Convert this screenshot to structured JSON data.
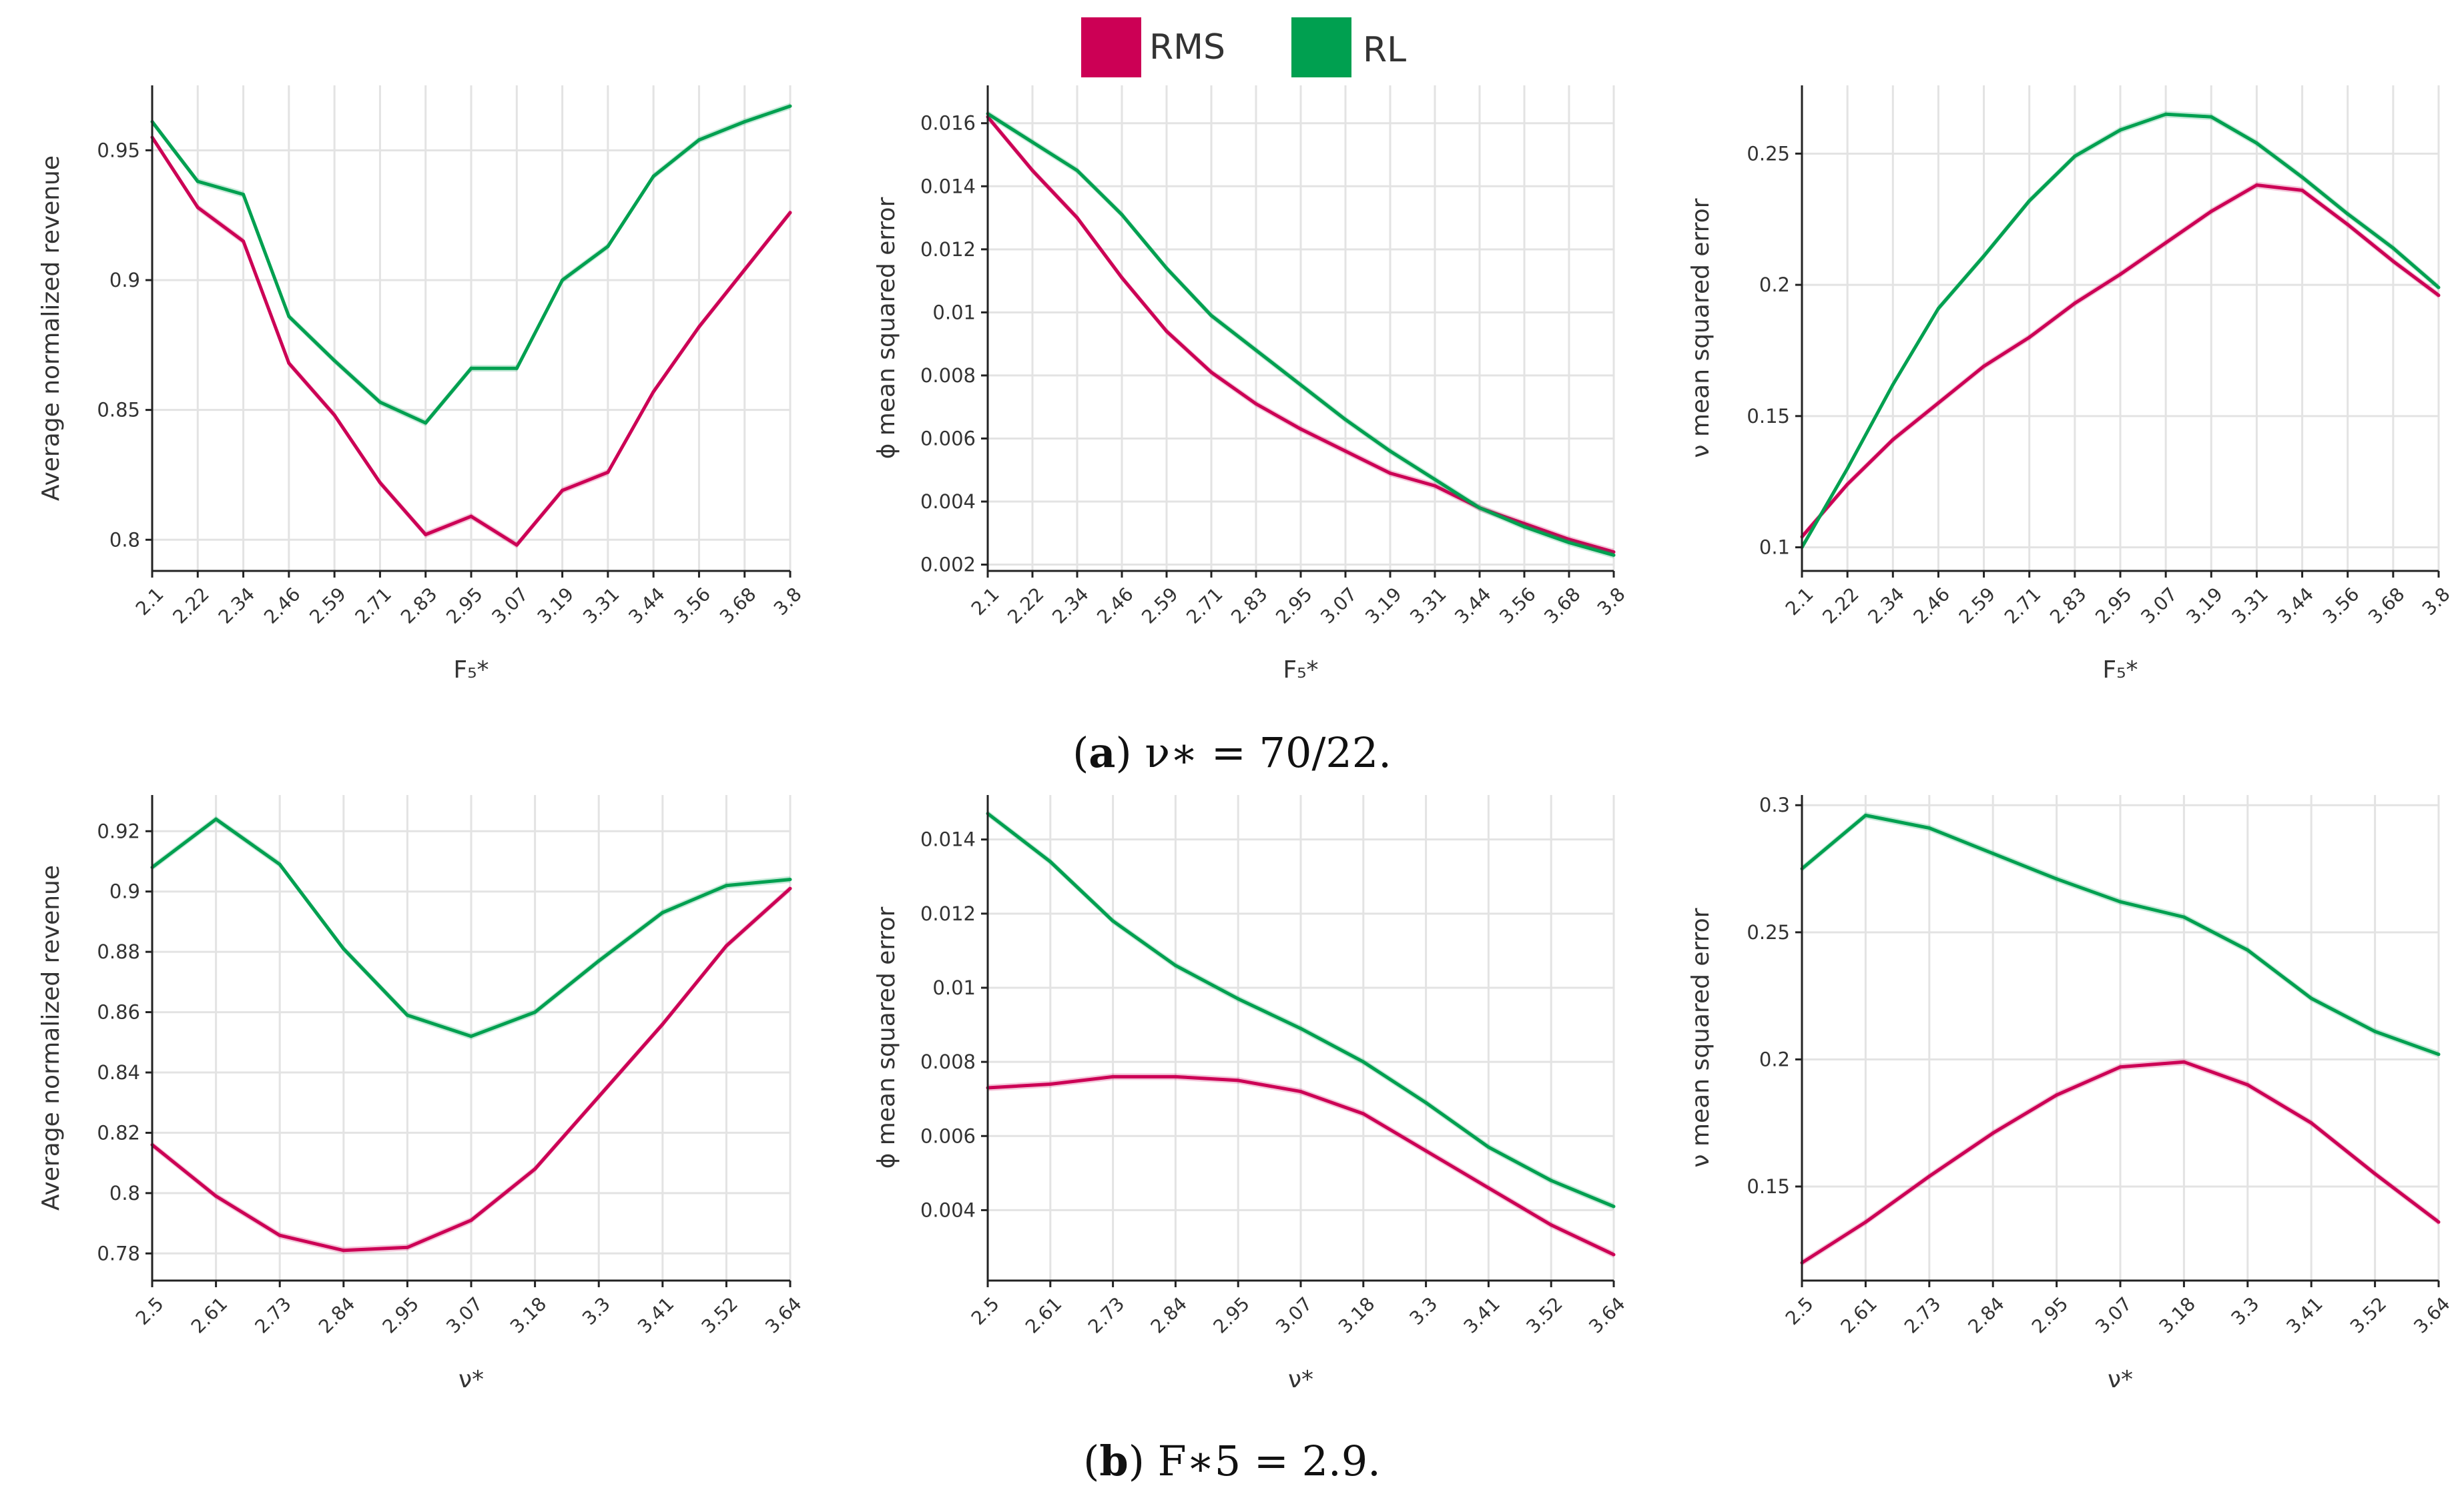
{
  "legend": {
    "items": [
      {
        "label": "RMS",
        "color": "#cc0055"
      },
      {
        "label": "RL",
        "color": "#00a050"
      }
    ]
  },
  "captions": {
    "a": {
      "tag": "a",
      "text": "ν∗ = 70/22."
    },
    "b": {
      "tag": "b",
      "text": "F∗5 = 2.9."
    }
  },
  "chart_data": [
    {
      "id": "a1",
      "type": "line",
      "xlabel": "F₅*",
      "ylabel": "Average normalized revenue",
      "x": [
        2.1,
        2.22,
        2.34,
        2.46,
        2.59,
        2.71,
        2.83,
        2.95,
        3.07,
        3.19,
        3.31,
        3.44,
        3.56,
        3.68,
        3.8
      ],
      "xticklabels": [
        "2.1",
        "2.22",
        "2.34",
        "2.46",
        "2.59",
        "2.71",
        "2.83",
        "2.95",
        "3.07",
        "3.19",
        "3.31",
        "3.44",
        "3.56",
        "3.68",
        "3.8"
      ],
      "ylim": [
        0.788,
        0.975
      ],
      "yticks": [
        0.8,
        0.85,
        0.9,
        0.95
      ],
      "yticklabels": [
        "0.8",
        "0.85",
        "0.9",
        "0.95"
      ],
      "grid": true,
      "series": [
        {
          "name": "RMS",
          "values": [
            0.955,
            0.928,
            0.915,
            0.868,
            0.848,
            0.822,
            0.802,
            0.809,
            0.798,
            0.819,
            0.826,
            0.857,
            0.882,
            0.904,
            0.926
          ]
        },
        {
          "name": "RL",
          "values": [
            0.961,
            0.938,
            0.933,
            0.886,
            0.869,
            0.853,
            0.845,
            0.866,
            0.866,
            0.9,
            0.913,
            0.94,
            0.954,
            0.961,
            0.967
          ]
        }
      ]
    },
    {
      "id": "a2",
      "type": "line",
      "xlabel": "F₅*",
      "ylabel": "ϕ mean squared error",
      "x": [
        2.1,
        2.22,
        2.34,
        2.46,
        2.59,
        2.71,
        2.83,
        2.95,
        3.07,
        3.19,
        3.31,
        3.44,
        3.56,
        3.68,
        3.8
      ],
      "xticklabels": [
        "2.1",
        "2.22",
        "2.34",
        "2.46",
        "2.59",
        "2.71",
        "2.83",
        "2.95",
        "3.07",
        "3.19",
        "3.31",
        "3.44",
        "3.56",
        "3.68",
        "3.8"
      ],
      "ylim": [
        0.0018,
        0.0172
      ],
      "yticks": [
        0.002,
        0.004,
        0.006,
        0.008,
        0.01,
        0.012,
        0.014,
        0.016
      ],
      "yticklabels": [
        "0.002",
        "0.004",
        "0.006",
        "0.008",
        "0.01",
        "0.012",
        "0.014",
        "0.016"
      ],
      "grid": true,
      "series": [
        {
          "name": "RMS",
          "values": [
            0.0162,
            0.0145,
            0.013,
            0.0111,
            0.0094,
            0.0081,
            0.0071,
            0.0063,
            0.0056,
            0.0049,
            0.0045,
            0.0038,
            0.0033,
            0.0028,
            0.0024
          ]
        },
        {
          "name": "RL",
          "values": [
            0.0163,
            0.0154,
            0.0145,
            0.0131,
            0.0114,
            0.0099,
            0.0088,
            0.0077,
            0.0066,
            0.0056,
            0.0047,
            0.0038,
            0.0032,
            0.0027,
            0.0023
          ]
        }
      ]
    },
    {
      "id": "a3",
      "type": "line",
      "xlabel": "F₅*",
      "ylabel": "ν mean squared error",
      "x": [
        2.1,
        2.22,
        2.34,
        2.46,
        2.59,
        2.71,
        2.83,
        2.95,
        3.07,
        3.19,
        3.31,
        3.44,
        3.56,
        3.68,
        3.8
      ],
      "xticklabels": [
        "2.1",
        "2.22",
        "2.34",
        "2.46",
        "2.59",
        "2.71",
        "2.83",
        "2.95",
        "3.07",
        "3.19",
        "3.31",
        "3.44",
        "3.56",
        "3.68",
        "3.8"
      ],
      "ylim": [
        0.091,
        0.276
      ],
      "yticks": [
        0.1,
        0.15,
        0.2,
        0.25
      ],
      "yticklabels": [
        "0.1",
        "0.15",
        "0.2",
        "0.25"
      ],
      "grid": true,
      "series": [
        {
          "name": "RMS",
          "values": [
            0.104,
            0.124,
            0.141,
            0.155,
            0.169,
            0.18,
            0.193,
            0.204,
            0.216,
            0.228,
            0.238,
            0.236,
            0.223,
            0.209,
            0.196
          ]
        },
        {
          "name": "RL",
          "values": [
            0.1,
            0.13,
            0.162,
            0.191,
            0.211,
            0.232,
            0.249,
            0.259,
            0.265,
            0.264,
            0.254,
            0.241,
            0.227,
            0.214,
            0.199
          ]
        }
      ]
    },
    {
      "id": "b1",
      "type": "line",
      "xlabel": "ν*",
      "ylabel": "Average normalized revenue",
      "x": [
        2.5,
        2.61,
        2.73,
        2.84,
        2.95,
        3.07,
        3.18,
        3.3,
        3.41,
        3.52,
        3.64
      ],
      "xticklabels": [
        "2.5",
        "2.61",
        "2.73",
        "2.84",
        "2.95",
        "3.07",
        "3.18",
        "3.3",
        "3.41",
        "3.52",
        "3.64"
      ],
      "ylim": [
        0.771,
        0.932
      ],
      "yticks": [
        0.78,
        0.8,
        0.82,
        0.84,
        0.86,
        0.88,
        0.9,
        0.92
      ],
      "yticklabels": [
        "0.78",
        "0.8",
        "0.82",
        "0.84",
        "0.86",
        "0.88",
        "0.9",
        "0.92"
      ],
      "grid": true,
      "series": [
        {
          "name": "RMS",
          "values": [
            0.816,
            0.799,
            0.786,
            0.781,
            0.782,
            0.791,
            0.808,
            0.832,
            0.856,
            0.882,
            0.901
          ]
        },
        {
          "name": "RL",
          "values": [
            0.908,
            0.924,
            0.909,
            0.881,
            0.859,
            0.852,
            0.86,
            0.877,
            0.893,
            0.902,
            0.904
          ]
        }
      ]
    },
    {
      "id": "b2",
      "type": "line",
      "xlabel": "ν*",
      "ylabel": "ϕ mean squared error",
      "x": [
        2.5,
        2.61,
        2.73,
        2.84,
        2.95,
        3.07,
        3.18,
        3.3,
        3.41,
        3.52,
        3.64
      ],
      "xticklabels": [
        "2.5",
        "2.61",
        "2.73",
        "2.84",
        "2.95",
        "3.07",
        "3.18",
        "3.3",
        "3.41",
        "3.52",
        "3.64"
      ],
      "ylim": [
        0.0021,
        0.0152
      ],
      "yticks": [
        0.004,
        0.006,
        0.008,
        0.01,
        0.012,
        0.014
      ],
      "yticklabels": [
        "0.004",
        "0.006",
        "0.008",
        "0.01",
        "0.012",
        "0.014"
      ],
      "grid": true,
      "series": [
        {
          "name": "RMS",
          "values": [
            0.0073,
            0.0074,
            0.0076,
            0.0076,
            0.0075,
            0.0072,
            0.0066,
            0.0056,
            0.0046,
            0.0036,
            0.0028
          ]
        },
        {
          "name": "RL",
          "values": [
            0.0147,
            0.0134,
            0.0118,
            0.0106,
            0.0097,
            0.0089,
            0.008,
            0.0069,
            0.0057,
            0.0048,
            0.0041
          ]
        }
      ]
    },
    {
      "id": "b3",
      "type": "line",
      "xlabel": "ν*",
      "ylabel": "ν mean squared error",
      "x": [
        2.5,
        2.61,
        2.73,
        2.84,
        2.95,
        3.07,
        3.18,
        3.3,
        3.41,
        3.52,
        3.64
      ],
      "xticklabels": [
        "2.5",
        "2.61",
        "2.73",
        "2.84",
        "2.95",
        "3.07",
        "3.18",
        "3.3",
        "3.41",
        "3.52",
        "3.64"
      ],
      "ylim": [
        0.113,
        0.304
      ],
      "yticks": [
        0.15,
        0.2,
        0.25,
        0.3
      ],
      "yticklabels": [
        "0.15",
        "0.2",
        "0.25",
        "0.3"
      ],
      "grid": true,
      "series": [
        {
          "name": "RMS",
          "values": [
            0.12,
            0.136,
            0.154,
            0.171,
            0.186,
            0.197,
            0.199,
            0.19,
            0.175,
            0.155,
            0.136
          ]
        },
        {
          "name": "RL",
          "values": [
            0.275,
            0.296,
            0.291,
            0.281,
            0.271,
            0.262,
            0.256,
            0.243,
            0.224,
            0.211,
            0.202
          ]
        }
      ]
    }
  ]
}
